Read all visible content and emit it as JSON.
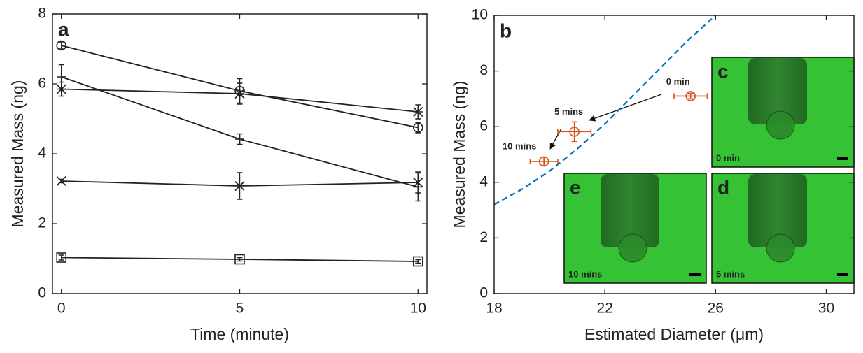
{
  "chart_data": [
    {
      "type": "line",
      "panel_label": "a",
      "y_label": "Measured Mass (ng)",
      "x_label": "Time (minute)",
      "x": [
        0,
        5,
        10
      ],
      "xlim": [
        -0.25,
        10.25
      ],
      "xticks": [
        0,
        5,
        10
      ],
      "ylim": [
        0,
        8
      ],
      "yticks": [
        0,
        2,
        4,
        6,
        8
      ],
      "series": [
        {
          "marker": "circle",
          "color": "#222222",
          "values": [
            7.1,
            5.8,
            4.75
          ],
          "errors": [
            0.1,
            0.35,
            0.15
          ]
        },
        {
          "marker": "plus",
          "color": "#222222",
          "values": [
            6.2,
            4.42,
            3.05
          ],
          "errors": [
            0.35,
            0.15,
            0.4
          ]
        },
        {
          "marker": "star",
          "color": "#222222",
          "values": [
            5.85,
            5.72,
            5.2
          ],
          "errors": [
            0.2,
            0.3,
            0.2
          ]
        },
        {
          "marker": "x",
          "color": "#222222",
          "values": [
            3.22,
            3.08,
            3.18
          ],
          "errors": [
            0.05,
            0.38,
            0.3
          ]
        },
        {
          "marker": "square",
          "color": "#222222",
          "values": [
            1.03,
            0.98,
            0.92
          ],
          "errors": [
            0.07,
            0.05,
            0.05
          ]
        }
      ]
    },
    {
      "type": "scatter",
      "panel_label": "b",
      "y_label": "Measured Mass (ng)",
      "x_label": "Estimated Diameter (μm)",
      "xlim": [
        18,
        31
      ],
      "xticks": [
        18,
        22,
        26,
        30
      ],
      "ylim": [
        0,
        10
      ],
      "yticks": [
        0,
        2,
        4,
        6,
        8,
        10
      ],
      "curve": {
        "color": "#0072bd",
        "dashed": true,
        "x": [
          18,
          19,
          20,
          21,
          22,
          23,
          24,
          25,
          26
        ],
        "y": [
          3.2,
          3.75,
          4.4,
          5.2,
          6.1,
          7.1,
          8.1,
          9.1,
          10
        ]
      },
      "series": [
        {
          "marker": "circle",
          "color": "#d95319",
          "x": [
            25.1,
            20.9,
            19.8
          ],
          "x_errors": [
            0.6,
            0.6,
            0.5
          ],
          "values": [
            7.1,
            5.82,
            4.75
          ],
          "errors": [
            0.1,
            0.35,
            0.15
          ],
          "annotations": [
            "0 min",
            "5 mins",
            "10 mins"
          ]
        }
      ],
      "insets": [
        {
          "letter": "c",
          "caption": "0 min"
        },
        {
          "letter": "e",
          "caption": "10 mins"
        },
        {
          "letter": "d",
          "caption": "5 mins"
        }
      ]
    }
  ]
}
